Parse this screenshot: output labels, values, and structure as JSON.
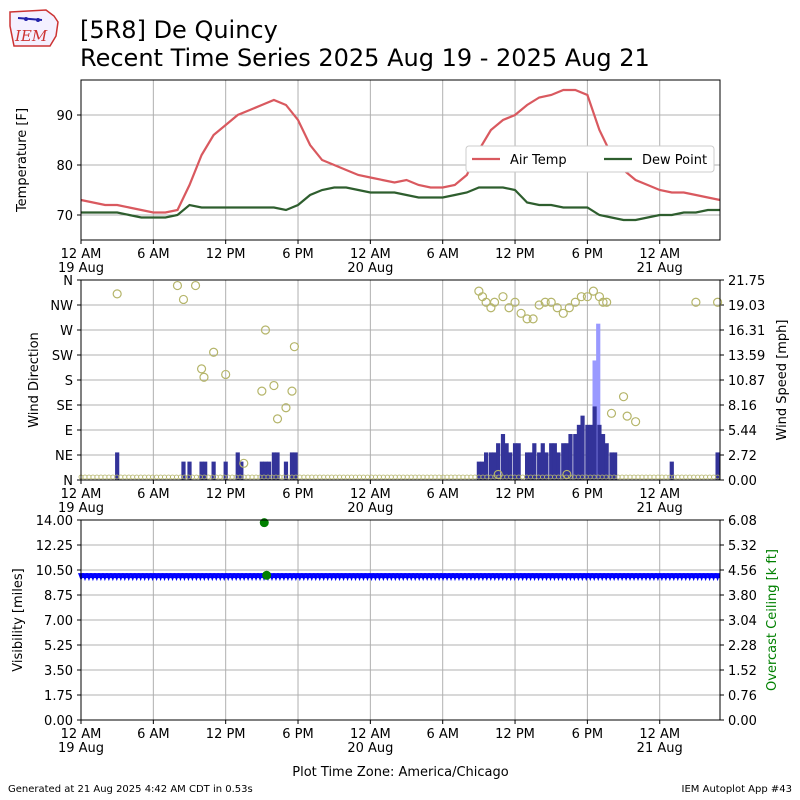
{
  "header": {
    "logo_text": "IEM",
    "title_line1": "[5R8] De Quincy",
    "title_line2": "Recent Time Series 2025 Aug 19 - 2025 Aug 21"
  },
  "footer": {
    "generated": "Generated at 21 Aug 2025 4:42 AM CDT in 0.53s",
    "app": "IEM Autoplot App #43"
  },
  "colors": {
    "air_temp": "#d9595f",
    "dew_point": "#2e5e2e",
    "wind_dir_marker": "#b5b56a",
    "wind_speed": "#333399",
    "wind_gust": "#9999ff",
    "visibility": "#0000ff",
    "ceiling": "#008000",
    "grid": "#b0b0b0"
  },
  "chart_data": [
    {
      "type": "line",
      "ylabel": "Temperature [F]",
      "xlabel": "",
      "xlim": [
        0,
        53
      ],
      "ylim": [
        65,
        97
      ],
      "grid": true,
      "y_ticks": [
        70,
        80,
        90
      ],
      "x_ticks": [
        {
          "h": 0,
          "label": "12 AM",
          "date": "19 Aug"
        },
        {
          "h": 6,
          "label": "6 AM"
        },
        {
          "h": 12,
          "label": "12 PM"
        },
        {
          "h": 18,
          "label": "6 PM"
        },
        {
          "h": 24,
          "label": "12 AM",
          "date": "20 Aug"
        },
        {
          "h": 30,
          "label": "6 AM"
        },
        {
          "h": 36,
          "label": "12 PM"
        },
        {
          "h": 42,
          "label": "6 PM"
        },
        {
          "h": 48,
          "label": "12 AM",
          "date": "21 Aug"
        }
      ],
      "legend": {
        "position": "right",
        "columns": 2
      },
      "series": [
        {
          "name": "Air Temp",
          "points": [
            [
              0,
              73
            ],
            [
              1,
              72.5
            ],
            [
              2,
              72
            ],
            [
              3,
              72
            ],
            [
              4,
              71.5
            ],
            [
              5,
              71
            ],
            [
              6,
              70.5
            ],
            [
              7,
              70.5
            ],
            [
              8,
              71
            ],
            [
              9,
              76
            ],
            [
              10,
              82
            ],
            [
              11,
              86
            ],
            [
              12,
              88
            ],
            [
              13,
              90
            ],
            [
              14,
              91
            ],
            [
              15,
              92
            ],
            [
              16,
              93
            ],
            [
              17,
              92
            ],
            [
              18,
              89
            ],
            [
              19,
              84
            ],
            [
              20,
              81
            ],
            [
              21,
              80
            ],
            [
              22,
              79
            ],
            [
              23,
              78
            ],
            [
              24,
              77.5
            ],
            [
              25,
              77
            ],
            [
              26,
              76.5
            ],
            [
              27,
              77
            ],
            [
              28,
              76
            ],
            [
              29,
              75.5
            ],
            [
              30,
              75.5
            ],
            [
              31,
              76
            ],
            [
              32,
              78
            ],
            [
              33,
              83
            ],
            [
              34,
              87
            ],
            [
              35,
              89
            ],
            [
              36,
              90
            ],
            [
              37,
              92
            ],
            [
              38,
              93.5
            ],
            [
              39,
              94
            ],
            [
              40,
              95
            ],
            [
              41,
              95
            ],
            [
              42,
              94
            ],
            [
              43,
              87
            ],
            [
              44,
              82
            ],
            [
              45,
              79
            ],
            [
              46,
              77
            ],
            [
              47,
              76
            ],
            [
              48,
              75
            ],
            [
              49,
              74.5
            ],
            [
              50,
              74.5
            ],
            [
              51,
              74
            ],
            [
              52,
              73.5
            ],
            [
              53,
              73
            ]
          ]
        },
        {
          "name": "Dew Point",
          "points": [
            [
              0,
              70.5
            ],
            [
              1,
              70.5
            ],
            [
              2,
              70.5
            ],
            [
              3,
              70.5
            ],
            [
              4,
              70
            ],
            [
              5,
              69.5
            ],
            [
              6,
              69.5
            ],
            [
              7,
              69.5
            ],
            [
              8,
              70
            ],
            [
              9,
              72
            ],
            [
              10,
              71.5
            ],
            [
              11,
              71.5
            ],
            [
              12,
              71.5
            ],
            [
              13,
              71.5
            ],
            [
              14,
              71.5
            ],
            [
              15,
              71.5
            ],
            [
              16,
              71.5
            ],
            [
              17,
              71
            ],
            [
              18,
              72
            ],
            [
              19,
              74
            ],
            [
              20,
              75
            ],
            [
              21,
              75.5
            ],
            [
              22,
              75.5
            ],
            [
              23,
              75
            ],
            [
              24,
              74.5
            ],
            [
              25,
              74.5
            ],
            [
              26,
              74.5
            ],
            [
              27,
              74
            ],
            [
              28,
              73.5
            ],
            [
              29,
              73.5
            ],
            [
              30,
              73.5
            ],
            [
              31,
              74
            ],
            [
              32,
              74.5
            ],
            [
              33,
              75.5
            ],
            [
              34,
              75.5
            ],
            [
              35,
              75.5
            ],
            [
              36,
              75
            ],
            [
              37,
              72.5
            ],
            [
              38,
              72
            ],
            [
              39,
              72
            ],
            [
              40,
              71.5
            ],
            [
              41,
              71.5
            ],
            [
              42,
              71.5
            ],
            [
              43,
              70
            ],
            [
              44,
              69.5
            ],
            [
              45,
              69
            ],
            [
              46,
              69
            ],
            [
              47,
              69.5
            ],
            [
              48,
              70
            ],
            [
              49,
              70
            ],
            [
              50,
              70.5
            ],
            [
              51,
              70.5
            ],
            [
              52,
              71
            ],
            [
              53,
              71
            ]
          ]
        }
      ]
    },
    {
      "type": "bar+scatter",
      "ylabel": "Wind Direction",
      "ylabel_right": "Wind Speed [mph]",
      "xlabel": "",
      "xlim": [
        0,
        53
      ],
      "ylim": [
        0,
        360
      ],
      "ylim_right": [
        0,
        21.75
      ],
      "grid": true,
      "y_ticks": [
        {
          "v": 0,
          "label": "N"
        },
        {
          "v": 45,
          "label": "NE"
        },
        {
          "v": 90,
          "label": "E"
        },
        {
          "v": 135,
          "label": "SE"
        },
        {
          "v": 180,
          "label": "S"
        },
        {
          "v": 225,
          "label": "SW"
        },
        {
          "v": 270,
          "label": "W"
        },
        {
          "v": 315,
          "label": "NW"
        },
        {
          "v": 360,
          "label": "N"
        }
      ],
      "y_ticks_right": [
        "0.00",
        "2.72",
        "5.44",
        "8.16",
        "10.87",
        "13.59",
        "16.31",
        "19.03",
        "21.75"
      ],
      "speed_bars": [
        [
          3,
          3
        ],
        [
          8.5,
          2
        ],
        [
          9,
          2
        ],
        [
          10,
          2
        ],
        [
          10.3,
          2
        ],
        [
          11,
          2
        ],
        [
          12,
          2
        ],
        [
          13,
          3
        ],
        [
          13.3,
          2
        ],
        [
          15,
          2
        ],
        [
          15.3,
          2
        ],
        [
          15.6,
          2
        ],
        [
          16,
          3
        ],
        [
          16.3,
          3
        ],
        [
          17,
          2
        ],
        [
          17.5,
          3
        ],
        [
          17.8,
          3
        ],
        [
          33,
          2
        ],
        [
          33.3,
          2
        ],
        [
          33.6,
          3
        ],
        [
          34,
          3
        ],
        [
          34.3,
          3
        ],
        [
          34.6,
          4
        ],
        [
          35,
          5
        ],
        [
          35.3,
          4
        ],
        [
          35.6,
          3
        ],
        [
          36,
          4
        ],
        [
          36.3,
          4
        ],
        [
          37,
          3
        ],
        [
          37.3,
          3
        ],
        [
          37.6,
          4
        ],
        [
          38,
          3
        ],
        [
          38.3,
          4
        ],
        [
          38.6,
          3
        ],
        [
          39,
          4
        ],
        [
          39.3,
          4
        ],
        [
          39.6,
          3
        ],
        [
          40,
          4
        ],
        [
          40.3,
          4
        ],
        [
          40.6,
          5
        ],
        [
          41,
          5
        ],
        [
          41.3,
          6
        ],
        [
          41.6,
          7
        ],
        [
          42,
          6
        ],
        [
          42.3,
          6
        ],
        [
          42.6,
          8
        ],
        [
          43,
          6
        ],
        [
          43.3,
          5
        ],
        [
          43.6,
          4
        ],
        [
          44,
          3
        ],
        [
          44.3,
          3
        ],
        [
          49,
          2
        ],
        [
          52.8,
          3
        ]
      ],
      "gust_bars": [
        [
          42.6,
          13
        ],
        [
          42.9,
          17
        ]
      ],
      "direction_points": [
        [
          3,
          335
        ],
        [
          8,
          350
        ],
        [
          8.5,
          325
        ],
        [
          9.5,
          350
        ],
        [
          10,
          200
        ],
        [
          10.2,
          185
        ],
        [
          11,
          230
        ],
        [
          12,
          190
        ],
        [
          13.5,
          30
        ],
        [
          15,
          160
        ],
        [
          15.3,
          270
        ],
        [
          16,
          170
        ],
        [
          16.3,
          110
        ],
        [
          17,
          130
        ],
        [
          17.5,
          160
        ],
        [
          17.7,
          240
        ],
        [
          33,
          340
        ],
        [
          33.3,
          330
        ],
        [
          33.6,
          320
        ],
        [
          34,
          310
        ],
        [
          34.3,
          320
        ],
        [
          35,
          330
        ],
        [
          35.5,
          310
        ],
        [
          36,
          320
        ],
        [
          36.5,
          300
        ],
        [
          37,
          290
        ],
        [
          37.5,
          290
        ],
        [
          38,
          315
        ],
        [
          38.5,
          320
        ],
        [
          39,
          320
        ],
        [
          39.5,
          310
        ],
        [
          40,
          300
        ],
        [
          40.5,
          310
        ],
        [
          41,
          320
        ],
        [
          41.5,
          330
        ],
        [
          42,
          330
        ],
        [
          42.5,
          340
        ],
        [
          43,
          330
        ],
        [
          43.3,
          320
        ],
        [
          43.6,
          320
        ],
        [
          44,
          120
        ],
        [
          45,
          150
        ],
        [
          45.3,
          115
        ],
        [
          46,
          105
        ],
        [
          51,
          320
        ],
        [
          52.8,
          320
        ],
        [
          34.6,
          10
        ],
        [
          40.3,
          10
        ]
      ]
    },
    {
      "type": "scatter",
      "ylabel": "Visibility [miles]",
      "ylabel_right": "Overcast Ceiling [k ft]",
      "xlabel": "Plot Time Zone: America/Chicago",
      "xlim": [
        0,
        53
      ],
      "ylim": [
        0,
        14
      ],
      "ylim_right": [
        0,
        6.08
      ],
      "grid": true,
      "y_ticks": [
        "0.00",
        "1.75",
        "3.50",
        "5.25",
        "7.00",
        "8.75",
        "10.50",
        "12.25",
        "14.00"
      ],
      "y_ticks_right": [
        "0.00",
        "0.76",
        "1.52",
        "2.28",
        "3.04",
        "3.80",
        "4.56",
        "5.32",
        "6.08"
      ],
      "visibility_miles": 10,
      "visibility_series": {
        "x_start": 0,
        "x_end": 53,
        "value": 10
      },
      "ceiling_points": [
        [
          15.2,
          6.0
        ],
        [
          15.4,
          4.4
        ]
      ]
    }
  ]
}
